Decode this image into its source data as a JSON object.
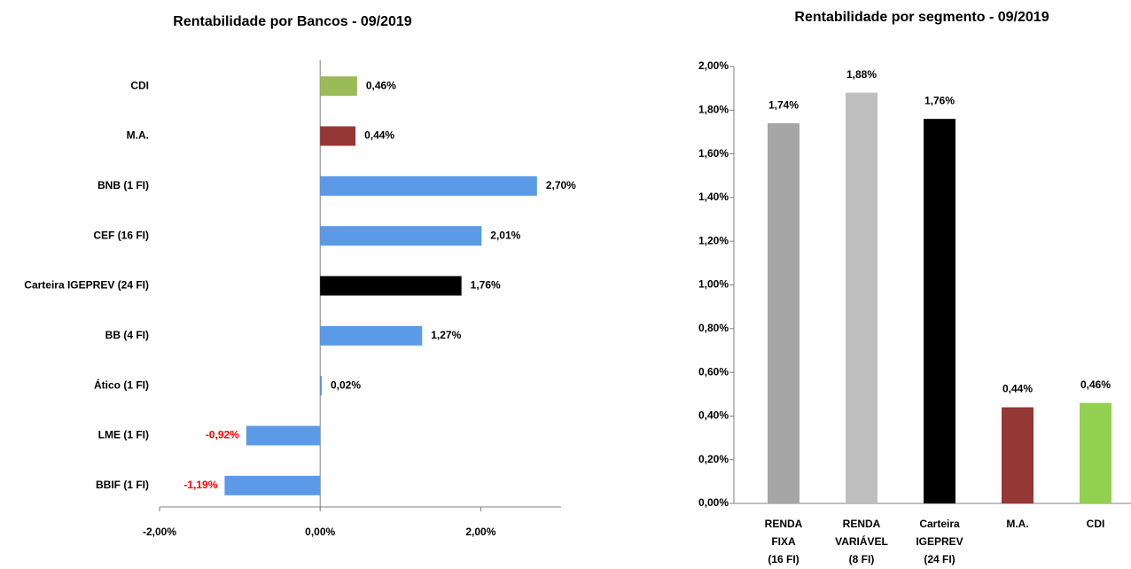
{
  "chart_data": [
    {
      "type": "bar",
      "horizontal": true,
      "title": "Rentabilidade por Bancos - 09/2019",
      "categories": [
        "CDI",
        "M.A.",
        "BNB (1 FI)",
        "CEF (16 FI)",
        "Carteira IGEPREV (24 FI)",
        "BB (4 FI)",
        "Ático (1 FI)",
        "LME (1 FI)",
        "BBIF (1 FI)"
      ],
      "values": [
        0.46,
        0.44,
        2.7,
        2.01,
        1.76,
        1.27,
        0.02,
        -0.92,
        -1.19
      ],
      "value_labels": [
        "0,46%",
        "0,44%",
        "2,70%",
        "2,01%",
        "1,76%",
        "1,27%",
        "0,02%",
        "-0,92%",
        "-1,19%"
      ],
      "colors": [
        "#9bbb59",
        "#953735",
        "#5b9ae6",
        "#5b9ae6",
        "#000000",
        "#5b9ae6",
        "#5b9ae6",
        "#5b9ae6",
        "#5b9ae6"
      ],
      "negative_label_color": "#ff0000",
      "xlim": [
        -2,
        3
      ],
      "xticks": [
        {
          "value": -2,
          "label": "-2,00%"
        },
        {
          "value": 0,
          "label": "0,00%"
        },
        {
          "value": 2,
          "label": "2,00%"
        }
      ]
    },
    {
      "type": "bar",
      "horizontal": false,
      "title": "Rentabilidade por segmento - 09/2019",
      "categories": [
        [
          "RENDA",
          "FIXA",
          "(16 FI)"
        ],
        [
          "RENDA",
          "VARIÁVEL",
          "(8 FI)"
        ],
        [
          "Carteira",
          "IGEPREV",
          "(24 FI)"
        ],
        [
          "M.A."
        ],
        [
          "CDI"
        ]
      ],
      "values": [
        1.74,
        1.88,
        1.76,
        0.44,
        0.46
      ],
      "value_labels": [
        "1,74%",
        "1,88%",
        "1,76%",
        "0,44%",
        "0,46%"
      ],
      "colors": [
        "#a6a6a6",
        "#bfbfbf",
        "#000000",
        "#953735",
        "#92d050"
      ],
      "ylim": [
        0,
        2
      ],
      "yticks": [
        {
          "value": 0,
          "label": "0,00%"
        },
        {
          "value": 0.2,
          "label": "0,20%"
        },
        {
          "value": 0.4,
          "label": "0,40%"
        },
        {
          "value": 0.6,
          "label": "0,60%"
        },
        {
          "value": 0.8,
          "label": "0,80%"
        },
        {
          "value": 1.0,
          "label": "1,00%"
        },
        {
          "value": 1.2,
          "label": "1,20%"
        },
        {
          "value": 1.4,
          "label": "1,40%"
        },
        {
          "value": 1.6,
          "label": "1,60%"
        },
        {
          "value": 1.8,
          "label": "1,80%"
        },
        {
          "value": 2.0,
          "label": "2,00%"
        }
      ]
    }
  ]
}
